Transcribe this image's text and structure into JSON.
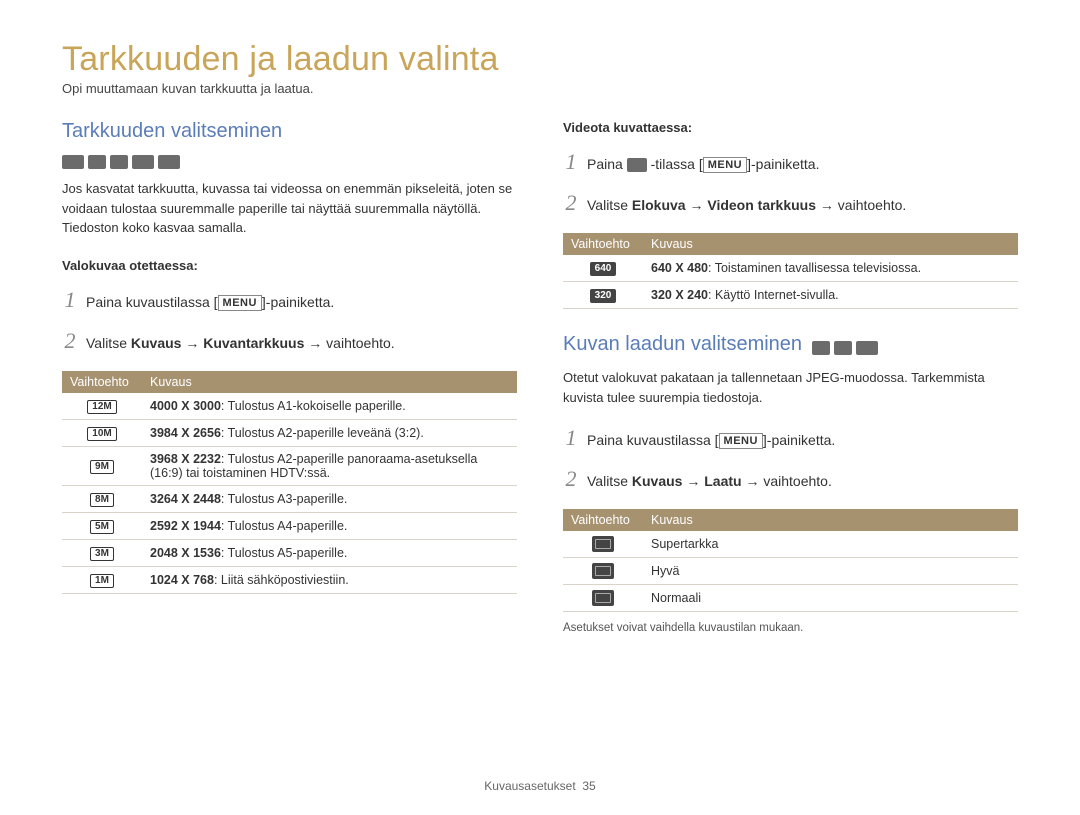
{
  "page_title": "Tarkkuuden ja laadun valinta",
  "intro": "Opi muuttamaan kuvan tarkkuutta ja laatua.",
  "footer": {
    "label": "Kuvausasetukset",
    "page": "35"
  },
  "colors": {
    "h1": "#c9a55a",
    "h2": "#5a7db8",
    "table_header_bg": "#a79270",
    "table_header_fg": "#ffffff",
    "row_border": "#d8d4c9"
  },
  "left": {
    "section_title": "Tarkkuuden valitseminen",
    "mode_icons": [
      "smart-icon",
      "program-icon",
      "dis-icon",
      "scene-icon",
      "movie-icon"
    ],
    "body": "Jos kasvatat tarkkuutta, kuvassa tai videossa on enemmän pikseleitä, joten se voidaan tulostaa suuremmalle paperille tai näyttää suuremmalla näytöllä. Tiedoston koko kasvaa samalla.",
    "photo": {
      "sub": "Valokuvaa otettaessa:",
      "steps": [
        {
          "pre": "Paina kuvaustilassa [",
          "chip": "MENU",
          "post": "]-painiketta."
        },
        {
          "pre": "Valitse ",
          "b1": "Kuvaus",
          "mid": " → ",
          "b2": "Kuvantarkkuus",
          "post": " → vaihtoehto."
        }
      ],
      "table": {
        "headers": [
          "Vaihtoehto",
          "Kuvaus"
        ],
        "rows": [
          {
            "badge": "12M",
            "res": "4000 X 3000",
            "desc": ": Tulostus A1-kokoiselle paperille."
          },
          {
            "badge": "10M",
            "res": "3984 X 2656",
            "desc": ": Tulostus A2-paperille leveänä (3:2)."
          },
          {
            "badge": "9M",
            "res": "3968 X 2232",
            "desc": ": Tulostus A2-paperille panoraama-asetuksella (16:9) tai toistaminen HDTV:ssä."
          },
          {
            "badge": "8M",
            "res": "3264 X 2448",
            "desc": ": Tulostus A3-paperille."
          },
          {
            "badge": "5M",
            "res": "2592 X 1944",
            "desc": ": Tulostus A4-paperille."
          },
          {
            "badge": "3M",
            "res": "2048 X 1536",
            "desc": ": Tulostus A5-paperille."
          },
          {
            "badge": "1M",
            "res": "1024 X 768",
            "desc": ": Liitä sähköpostiviestiin."
          }
        ]
      }
    }
  },
  "right": {
    "video": {
      "sub": "Videota kuvattaessa:",
      "steps": [
        {
          "pre": "Paina ",
          "vid_icon": true,
          "mid": " -tilassa [",
          "chip": "MENU",
          "post": "]-painiketta."
        },
        {
          "pre": "Valitse ",
          "b1": "Elokuva",
          "mid": " → ",
          "b2": "Videon tarkkuus",
          "post": " → vaihtoehto."
        }
      ],
      "table": {
        "headers": [
          "Vaihtoehto",
          "Kuvaus"
        ],
        "rows": [
          {
            "badge": "640",
            "res": "640 X 480",
            "desc": ": Toistaminen tavallisessa televisiossa."
          },
          {
            "badge": "320",
            "res": "320 X 240",
            "desc": ": Käyttö Internet-sivulla."
          }
        ]
      }
    },
    "quality": {
      "section_title": "Kuvan laadun valitseminen",
      "mode_icons": [
        "program-icon",
        "dis-icon",
        "scene-icon"
      ],
      "body": "Otetut valokuvat pakataan ja tallennetaan JPEG-muodossa. Tarkemmista kuvista tulee suurempia tiedostoja.",
      "steps": [
        {
          "pre": "Paina kuvaustilassa [",
          "chip": "MENU",
          "post": "]-painiketta."
        },
        {
          "pre": "Valitse ",
          "b1": "Kuvaus",
          "mid": " → ",
          "b2": "Laatu",
          "post": " → vaihtoehto."
        }
      ],
      "table": {
        "headers": [
          "Vaihtoehto",
          "Kuvaus"
        ],
        "rows": [
          {
            "icon": "sf",
            "label": "Supertarkka"
          },
          {
            "icon": "f",
            "label": "Hyvä"
          },
          {
            "icon": "n",
            "label": "Normaali"
          }
        ]
      },
      "note": "Asetukset voivat vaihdella kuvaustilan mukaan."
    }
  }
}
